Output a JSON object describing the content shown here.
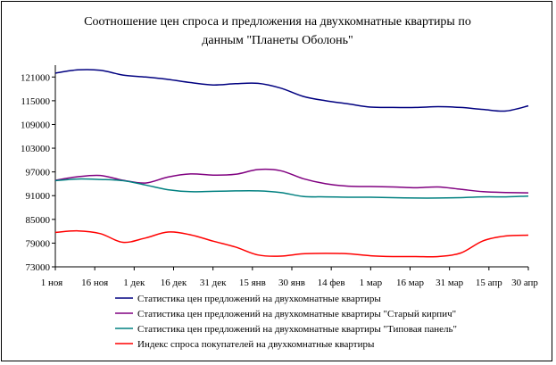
{
  "chart_data": {
    "type": "line",
    "title_line1": "Соотношение цен спроса и предложения на двухкомнатные квартиры      по",
    "title_line2": "данным \"Планеты Оболонь\"",
    "ylim": [
      73000,
      124000
    ],
    "yticks": [
      73000,
      79000,
      85000,
      91000,
      97000,
      103000,
      109000,
      115000,
      121000
    ],
    "ytick_labels": [
      "73000",
      "79000",
      "85000",
      "91000",
      "97000",
      "103000",
      "109000",
      "115000",
      "121000"
    ],
    "x_labels": [
      "1 ноя",
      "16 ноя",
      "1 дек",
      "16 дек",
      "31 дек",
      "15 янв",
      "30 янв",
      "14 фев",
      "1 мар",
      "16 мар",
      "31 мар",
      "15 апр",
      "30 апр"
    ],
    "grid": false,
    "legend_position": "bottom",
    "series": [
      {
        "name": "Статистика цен предложений на двухкомнатные квартиры",
        "color": "#000080",
        "values": [
          122000,
          122800,
          122700,
          121500,
          121000,
          120400,
          119600,
          119000,
          119300,
          119400,
          118200,
          116100,
          115000,
          114200,
          113400,
          113300,
          113300,
          113500,
          113300,
          112800,
          112400,
          113700
        ]
      },
      {
        "name": "Статистика цен предложений на двухкомнатные квартиры \"Старый кирпич\"",
        "color": "#800080",
        "values": [
          94900,
          95800,
          96100,
          94900,
          94200,
          95700,
          96500,
          96200,
          96400,
          97600,
          97300,
          95300,
          94000,
          93400,
          93300,
          93200,
          93000,
          93200,
          92600,
          92000,
          91800,
          91700
        ]
      },
      {
        "name": "Статистика цен предложений на двухкомнатные квартиры \"Типовая панель\"",
        "color": "#008080",
        "values": [
          94800,
          95200,
          95100,
          94800,
          93700,
          92500,
          92000,
          92100,
          92200,
          92200,
          91800,
          90800,
          90700,
          90600,
          90600,
          90500,
          90400,
          90400,
          90500,
          90700,
          90700,
          90900
        ]
      },
      {
        "name": "Индекс спроса покупателей на двухкомнатные квартиры",
        "color": "#ff0000",
        "values": [
          81700,
          82100,
          81400,
          79200,
          80300,
          81800,
          81100,
          79500,
          78000,
          76000,
          75700,
          76300,
          76400,
          76300,
          75800,
          75600,
          75600,
          75600,
          76500,
          79600,
          80800,
          81000
        ]
      }
    ]
  }
}
